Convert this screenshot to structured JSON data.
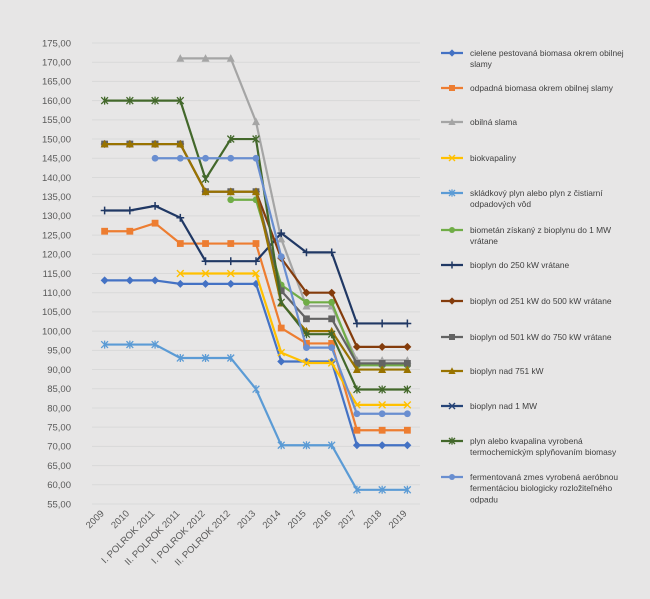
{
  "chart_data": {
    "type": "line",
    "title": "",
    "xlabel": "",
    "ylabel": "",
    "ylim": [
      55,
      175
    ],
    "y_step": 5,
    "y_tick_labels": [
      "55,00",
      "60,00",
      "65,00",
      "70,00",
      "75,00",
      "80,00",
      "85,00",
      "90,00",
      "95,00",
      "100,00",
      "105,00",
      "110,00",
      "115,00",
      "120,00",
      "125,00",
      "130,00",
      "135,00",
      "140,00",
      "145,00",
      "150,00",
      "155,00",
      "160,00",
      "165,00",
      "170,00",
      "175,00"
    ],
    "categories": [
      "2009",
      "2010",
      "I. POLROK 2011",
      "II. POLROK 2011",
      "I. POLROK 2012",
      "II. POLROK 2012",
      "2013",
      "2014",
      "2015",
      "2016",
      "2017",
      "2018",
      "2019"
    ],
    "legend_position": "right",
    "series": [
      {
        "name": "cielene pestovaná biomasa okrem obilnej slamy",
        "color": "#4472c4",
        "marker": "diamond",
        "values": [
          113.2,
          113.2,
          113.2,
          112.3,
          112.3,
          112.3,
          112.3,
          92.1,
          92.1,
          92.1,
          70.3,
          70.3,
          70.3
        ]
      },
      {
        "name": "odpadná biomasa okrem obilnej slamy",
        "color": "#ed7d31",
        "marker": "square",
        "values": [
          126,
          126,
          128.1,
          122.8,
          122.8,
          122.8,
          122.8,
          100.8,
          96.8,
          96.8,
          74.2,
          74.2,
          74.2
        ]
      },
      {
        "name": "obilná slama",
        "color": "#a5a5a5",
        "marker": "triangle",
        "values": [
          null,
          null,
          null,
          171,
          171,
          171,
          154.5,
          124,
          106.5,
          106.5,
          92.4,
          92.4,
          92.4
        ]
      },
      {
        "name": "biokvapaliny",
        "color": "#ffc000",
        "marker": "cross",
        "values": [
          null,
          null,
          null,
          115,
          115,
          115,
          115,
          94.4,
          91.7,
          91.7,
          80.8,
          80.8,
          80.8
        ]
      },
      {
        "name": "skládkový plyn alebo plyn z čistiarní odpadových vôd",
        "color": "#5b9bd5",
        "marker": "star",
        "values": [
          96.5,
          96.5,
          96.5,
          93,
          93,
          93,
          84.9,
          70.3,
          70.3,
          70.3,
          58.7,
          58.7,
          58.7
        ]
      },
      {
        "name": "biometán získaný z bioplynu do 1 MW vrátane",
        "color": "#70ad47",
        "marker": "circle",
        "values": [
          null,
          null,
          null,
          null,
          null,
          134.2,
          134.2,
          112,
          107.5,
          107.5,
          91.1,
          91.1,
          91.1
        ]
      },
      {
        "name": "bioplyn do 250 kW vrátane",
        "color": "#203864",
        "marker": "plus",
        "values": [
          131.4,
          131.4,
          132.6,
          129.5,
          118.2,
          118.2,
          118.2,
          125.5,
          120.5,
          120.5,
          102,
          102,
          102
        ]
      },
      {
        "name": "bioplyn od 251 kW do 500 kW vrátane",
        "color": "#843c0c",
        "marker": "diamond",
        "values": [
          148.7,
          148.7,
          148.7,
          148.7,
          136.3,
          136.3,
          136.3,
          119,
          110,
          110,
          95.9,
          95.9,
          95.9
        ]
      },
      {
        "name": "bioplyn od 501 kW do 750 kW vrátane",
        "color": "#636363",
        "marker": "square",
        "values": [
          148.7,
          148.7,
          148.7,
          148.7,
          136.3,
          136.3,
          136.3,
          110.5,
          103.2,
          103.2,
          91.6,
          91.6,
          91.6
        ]
      },
      {
        "name": "bioplyn nad 751 kW",
        "color": "#997300",
        "marker": "triangle",
        "values": [
          148.7,
          148.7,
          148.7,
          148.7,
          136.3,
          136.3,
          136.3,
          107.3,
          100,
          100,
          90,
          90,
          90
        ]
      },
      {
        "name": "bioplyn nad 1 MW",
        "color": "#264478",
        "marker": "cross",
        "values": [
          null,
          null,
          null,
          null,
          null,
          null,
          null,
          null,
          null,
          null,
          null,
          null,
          null
        ]
      },
      {
        "name": "plyn alebo kvapalina vyrobená termochemickým splyňovaním biomasy",
        "color": "#43682b",
        "marker": "star",
        "values": [
          160,
          160,
          160,
          160,
          139.6,
          150,
          150,
          107.5,
          99.2,
          99.2,
          84.8,
          84.8,
          84.8
        ]
      },
      {
        "name": "fermentovaná zmes vyrobená aeróbnou fermentáciou biologicky rozložiteľného odpadu",
        "color": "#698ed0",
        "marker": "circle",
        "values": [
          null,
          null,
          145,
          145,
          145,
          145,
          145,
          119.4,
          95.7,
          95.7,
          78.5,
          78.5,
          78.5
        ]
      }
    ]
  }
}
